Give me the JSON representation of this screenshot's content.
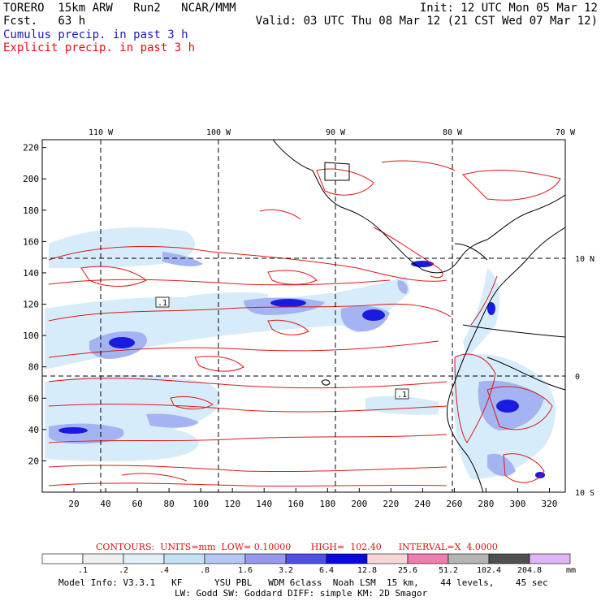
{
  "header": {
    "model": "TORERO  15km ARW   Run2   NCAR/MMM",
    "init": "Init: 12 UTC Mon 05 Mar 12",
    "fcst": "Fcst.   63 h",
    "valid": "Valid: 03 UTC Thu 08 Mar 12 (21 CST Wed 07 Mar 12)",
    "field_cumulus": "Cumulus precip. in past 3 h",
    "field_explicit": "Explicit precip. in past 3 h"
  },
  "axes": {
    "top_lon_labels": [
      "110 W",
      "100 W",
      "90 W",
      "80 W",
      "70 W"
    ],
    "right_lat_labels": [
      "10 N",
      "0",
      "10 S"
    ],
    "left_grid_labels": [
      "220",
      "200",
      "180",
      "160",
      "140",
      "120",
      "100",
      "80",
      "60",
      "40",
      "20"
    ],
    "bottom_grid_labels": [
      "20",
      "40",
      "60",
      "80",
      "100",
      "120",
      "140",
      "160",
      "180",
      "200",
      "220",
      "240",
      "260",
      "280",
      "300",
      "320"
    ],
    "x_range": [
      0,
      330
    ],
    "y_range": [
      0,
      225
    ]
  },
  "contour_labels": [
    ".1",
    ".1"
  ],
  "contours_info": {
    "label": "CONTOURS:  UNITS=mm  LOW= 0.10000       HIGH=  102.40      INTERVAL=X  4.0000"
  },
  "colorbar": {
    "tick_labels": [
      ".1",
      ".2",
      ".4",
      ".8",
      "1.6",
      "3.2",
      "6.4",
      "12.8",
      "25.6",
      "51.2",
      "102.4",
      "204.8"
    ],
    "unit": "mm",
    "colors": [
      "#ffffff",
      "#f0f0f0",
      "#e2f0fa",
      "#c4e2f6",
      "#b4c8f6",
      "#9898f0",
      "#5050e8",
      "#0a0ae0",
      "#f8d6d6",
      "#f07cb0",
      "#b4b4b4",
      "#505050",
      "#e0b4f8"
    ]
  },
  "footer": {
    "line1": "Model Info: V3.3.1   KF      YSU PBL   WDM 6class  Noah LSM  15 km,    44 levels,    45 sec",
    "line2": "LW: Godd SW: Goddard DIFF: simple KM: 2D Smagor"
  }
}
